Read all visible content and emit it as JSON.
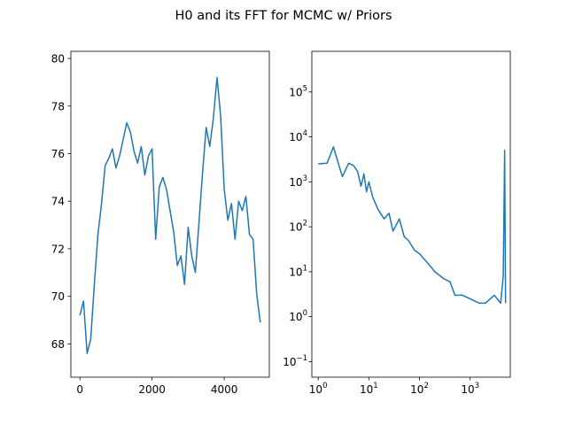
{
  "figure": {
    "title": "H0 and its FFT for MCMC w/ Priors",
    "series_color": "#1f77b4"
  },
  "chart_data": [
    {
      "type": "line",
      "title": "",
      "xlabel": "",
      "ylabel": "",
      "xlim": [
        -250,
        5250
      ],
      "ylim": [
        66.6,
        80.3
      ],
      "x_ticks": [
        0,
        2000,
        4000
      ],
      "x_tick_labels": [
        "0",
        "2000",
        "4000"
      ],
      "y_ticks": [
        68,
        70,
        72,
        74,
        76,
        78,
        80
      ],
      "y_tick_labels": [
        "68",
        "70",
        "72",
        "74",
        "76",
        "78",
        "80"
      ],
      "grid": false,
      "series": [
        {
          "x": [
            0,
            100,
            200,
            300,
            400,
            500,
            600,
            700,
            800,
            900,
            1000,
            1100,
            1200,
            1300,
            1400,
            1500,
            1600,
            1700,
            1800,
            1900,
            2000,
            2100,
            2200,
            2300,
            2400,
            2500,
            2600,
            2700,
            2800,
            2900,
            3000,
            3100,
            3200,
            3300,
            3400,
            3500,
            3600,
            3700,
            3800,
            3900,
            4000,
            4100,
            4200,
            4300,
            4400,
            4500,
            4600,
            4700,
            4800,
            4900,
            5000
          ],
          "y": [
            69.2,
            69.8,
            67.6,
            68.2,
            70.5,
            72.6,
            73.9,
            75.5,
            75.8,
            76.2,
            75.4,
            75.9,
            76.6,
            77.3,
            76.9,
            76.1,
            75.6,
            76.3,
            75.1,
            75.9,
            76.2,
            72.4,
            74.6,
            75.0,
            74.5,
            73.6,
            72.7,
            71.3,
            71.7,
            70.5,
            72.9,
            71.7,
            71.0,
            73.1,
            75.2,
            77.1,
            76.3,
            77.5,
            79.2,
            77.6,
            74.5,
            73.2,
            73.9,
            72.4,
            74.0,
            73.6,
            74.2,
            72.6,
            72.4,
            70.1,
            68.9
          ]
        }
      ]
    },
    {
      "type": "line",
      "title": "",
      "xlabel": "",
      "ylabel": "",
      "xscale": "log",
      "yscale": "log",
      "xlim": [
        0.75,
        6200
      ],
      "ylim": [
        0.045,
        800000
      ],
      "x_ticks": [
        1,
        10,
        100,
        1000
      ],
      "x_tick_labels": [
        "10",
        "10",
        "10",
        "10"
      ],
      "x_tick_exponents": [
        "0",
        "1",
        "2",
        "3"
      ],
      "y_ticks": [
        0.1,
        1,
        10,
        100,
        1000,
        10000,
        100000
      ],
      "y_tick_labels": [
        "10",
        "10",
        "10",
        "10",
        "10",
        "10",
        "10"
      ],
      "y_tick_exponents": [
        "−1",
        "0",
        "1",
        "2",
        "3",
        "4",
        "5"
      ],
      "grid": false,
      "series": [
        {
          "x": [
            1,
            1.5,
            2,
            3,
            4,
            5,
            6,
            7,
            8,
            9,
            10,
            12,
            15,
            20,
            25,
            30,
            40,
            50,
            60,
            80,
            100,
            150,
            200,
            300,
            400,
            500,
            700,
            1000,
            1500,
            2000,
            3000,
            4000,
            4500,
            4800,
            5000
          ],
          "y": [
            2500,
            2600,
            6000,
            1300,
            2600,
            2300,
            1700,
            800,
            1500,
            600,
            1000,
            450,
            250,
            150,
            200,
            80,
            150,
            60,
            50,
            30,
            25,
            15,
            10,
            7,
            6,
            3,
            3,
            2.5,
            2,
            2,
            3,
            2,
            8,
            5000,
            2
          ]
        }
      ]
    }
  ]
}
